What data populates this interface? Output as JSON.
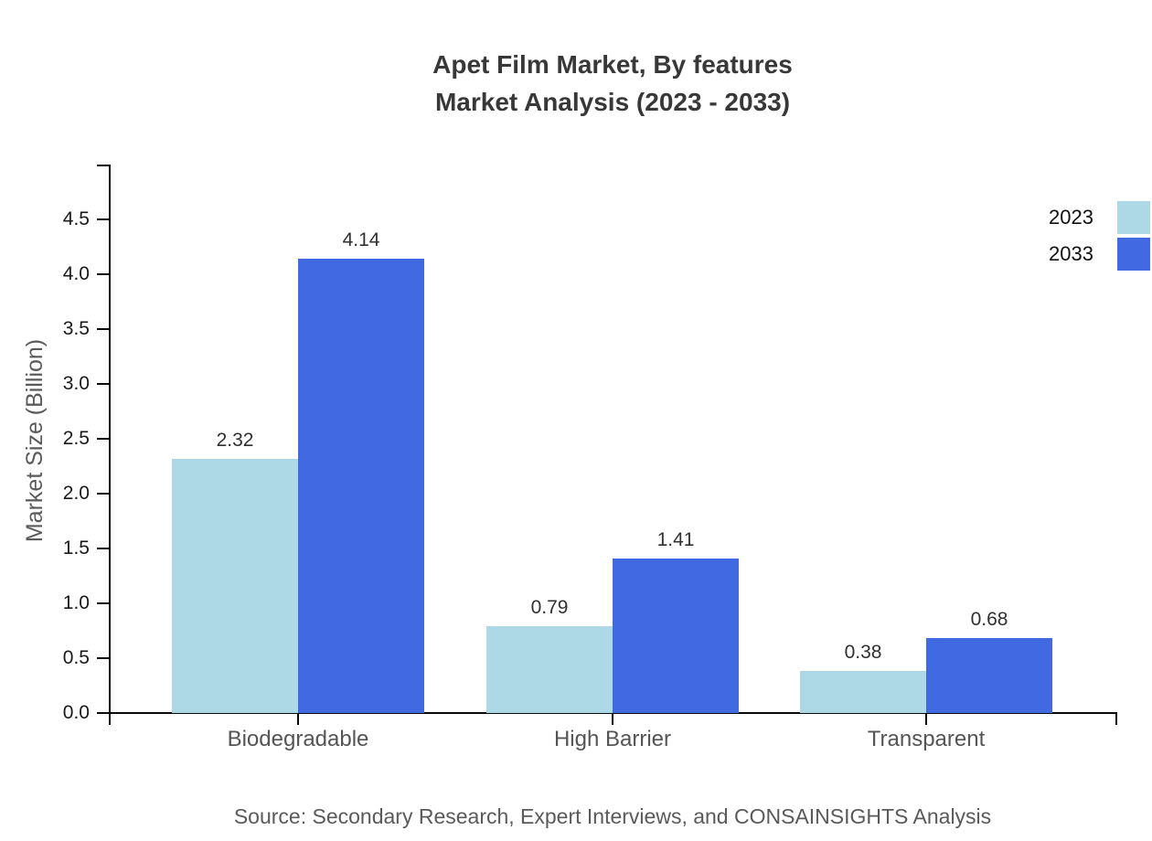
{
  "title": {
    "line1": "Apet Film Market, By features",
    "line2": "Market Analysis (2023 - 2033)"
  },
  "source": "Source: Secondary Research, Expert Interviews, and CONSAINSIGHTS Analysis",
  "colors": {
    "series_2023": "#ADD8E6",
    "series_2033": "#4169E1",
    "title_text": "#383838",
    "axis_text": "#5a5a5a",
    "tick_text": "#1a1a1a",
    "axis_line": "#0a0a0a"
  },
  "chart_data": {
    "type": "bar",
    "title": "Apet Film Market, By features — Market Analysis (2023 - 2033)",
    "categories": [
      "Biodegradable",
      "High Barrier",
      "Transparent"
    ],
    "series": [
      {
        "name": "2023",
        "values": [
          2.32,
          0.79,
          0.38
        ],
        "color": "#ADD8E6"
      },
      {
        "name": "2033",
        "values": [
          4.14,
          1.41,
          0.68
        ],
        "color": "#4169E1"
      }
    ],
    "xlabel": "",
    "ylabel": "Market Size (Billion)",
    "ylim": [
      0,
      5.0
    ],
    "yticks": [
      0.0,
      0.5,
      1.0,
      1.5,
      2.0,
      2.5,
      3.0,
      3.5,
      4.0,
      4.5
    ],
    "grid": false,
    "legend_position": "upper-right-outside",
    "value_labels": true
  }
}
